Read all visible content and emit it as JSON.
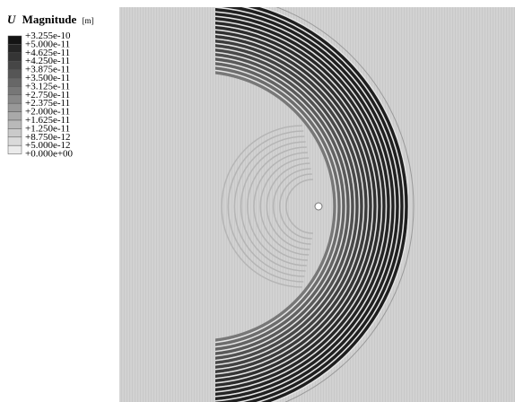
{
  "legend": {
    "title": {
      "symbol": "U",
      "name": "Magnitude",
      "unit": "[m]"
    },
    "labels": [
      "+3.255e-10",
      "+5.000e-11",
      "+4.625e-11",
      "+4.250e-11",
      "+3.875e-11",
      "+3.500e-11",
      "+3.125e-11",
      "+2.750e-11",
      "+2.375e-11",
      "+2.000e-11",
      "+1.625e-11",
      "+1.250e-11",
      "+8.750e-12",
      "+5.000e-12",
      "+0.000e+00"
    ]
  }
}
